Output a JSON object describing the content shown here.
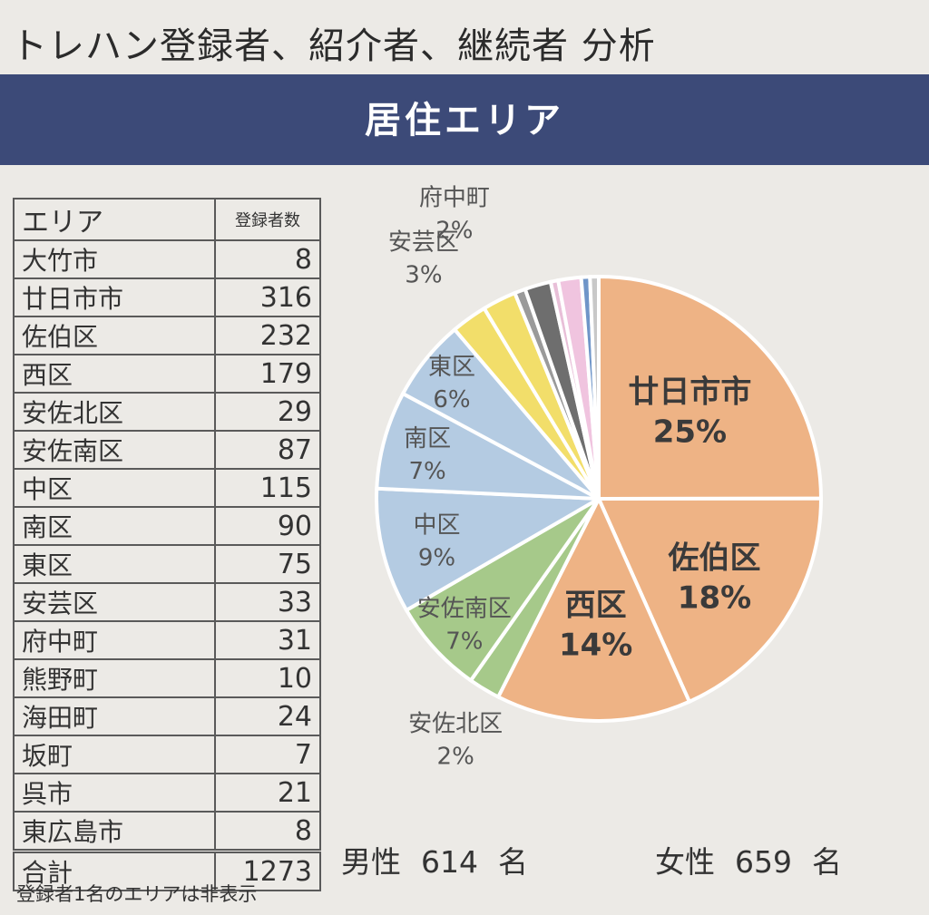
{
  "header": {
    "title": "トレハン登録者、紹介者、継続者 分析",
    "section": "居住エリア"
  },
  "table": {
    "col_area": "エリア",
    "col_count": "登録者数",
    "rows": [
      {
        "area": "大竹市",
        "count": "8"
      },
      {
        "area": "廿日市市",
        "count": "316"
      },
      {
        "area": "佐伯区",
        "count": "232"
      },
      {
        "area": "西区",
        "count": "179"
      },
      {
        "area": "安佐北区",
        "count": "29"
      },
      {
        "area": "安佐南区",
        "count": "87"
      },
      {
        "area": "中区",
        "count": "115"
      },
      {
        "area": "南区",
        "count": "90"
      },
      {
        "area": "東区",
        "count": "75"
      },
      {
        "area": "安芸区",
        "count": "33"
      },
      {
        "area": "府中町",
        "count": "31"
      },
      {
        "area": "熊野町",
        "count": "10"
      },
      {
        "area": "海田町",
        "count": "24"
      },
      {
        "area": "坂町",
        "count": "7"
      },
      {
        "area": "呉市",
        "count": "21"
      },
      {
        "area": "東広島市",
        "count": "8"
      }
    ],
    "total_label": "合計",
    "total_value": "1273"
  },
  "footnote": "登録者1名のエリアは非表示",
  "gender": {
    "male_label": "男性",
    "male_count": "614",
    "female_label": "女性",
    "female_count": "659",
    "unit": "名"
  },
  "chart_data": {
    "type": "pie",
    "categories": [
      "廿日市市",
      "佐伯区",
      "西区",
      "安佐北区",
      "安佐南区",
      "中区",
      "南区",
      "東区",
      "安芸区",
      "府中町",
      "熊野町",
      "海田町",
      "坂町",
      "呉市",
      "東広島市",
      "大竹市"
    ],
    "values": [
      316,
      232,
      179,
      29,
      87,
      115,
      90,
      75,
      33,
      31,
      10,
      24,
      7,
      21,
      8,
      8
    ],
    "colors": [
      "#eeb385",
      "#eeb385",
      "#eeb385",
      "#a6c98a",
      "#a6c98a",
      "#b4cbe2",
      "#b4cbe2",
      "#b4cbe2",
      "#f2de6a",
      "#f2de6a",
      "#9a9a9a",
      "#6e6e6e",
      "#e8bfd8",
      "#f0c4df",
      "#6f95c8",
      "#c8c8c8"
    ],
    "labels": [
      {
        "name": "廿日市市",
        "pct": "25%"
      },
      {
        "name": "佐伯区",
        "pct": "18%"
      },
      {
        "name": "西区",
        "pct": "14%"
      },
      {
        "name": "安佐北区",
        "pct": "2%"
      },
      {
        "name": "安佐南区",
        "pct": "7%"
      },
      {
        "name": "中区",
        "pct": "9%"
      },
      {
        "name": "南区",
        "pct": "7%"
      },
      {
        "name": "東区",
        "pct": "6%"
      },
      {
        "name": "安芸区",
        "pct": "3%"
      },
      {
        "name": "府中町",
        "pct": "2%"
      }
    ]
  }
}
